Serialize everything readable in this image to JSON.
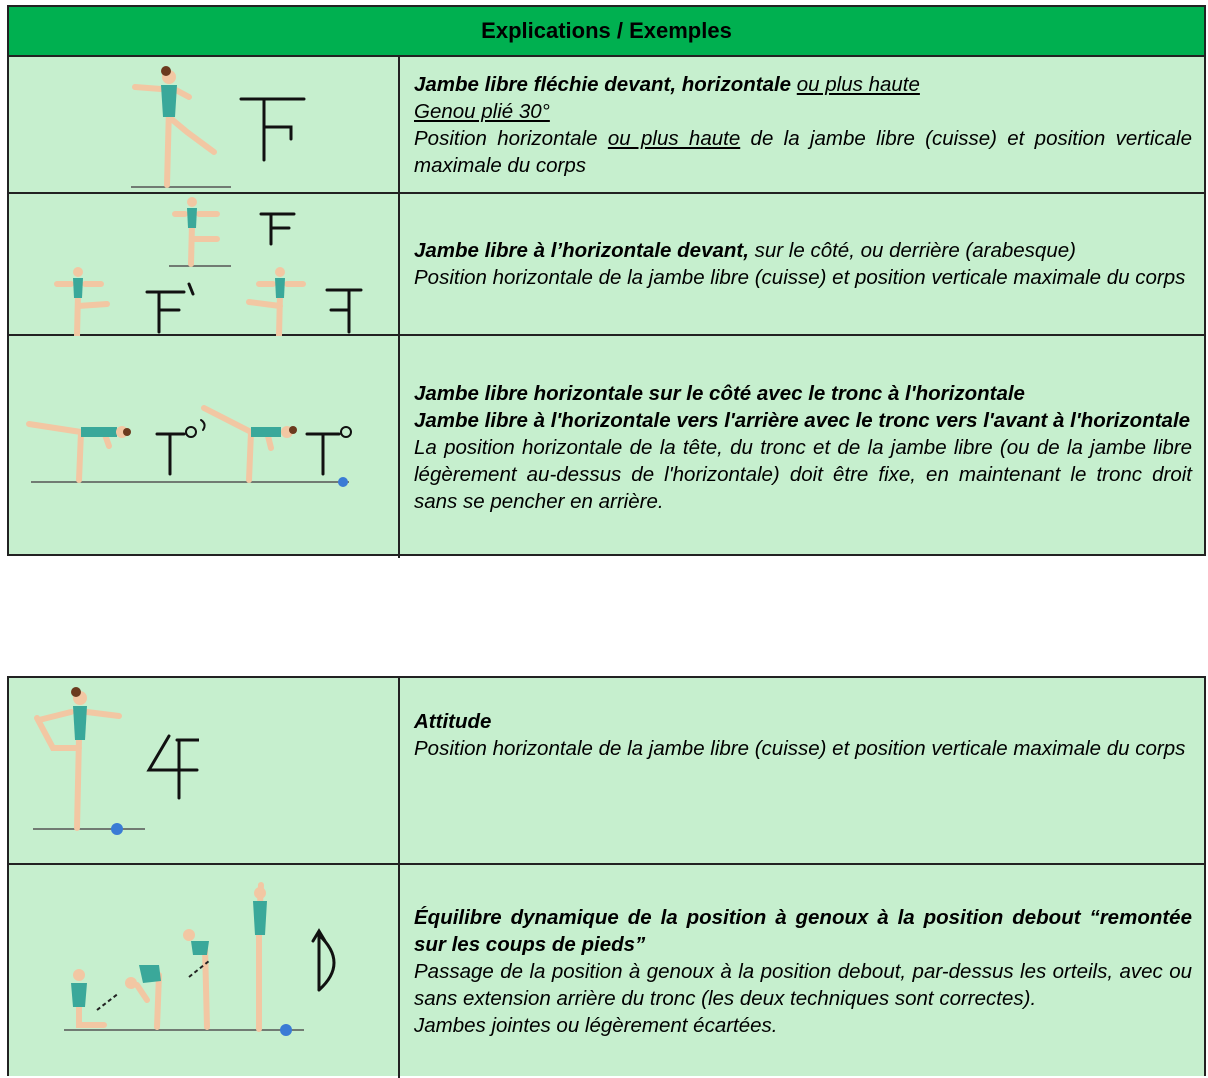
{
  "tables": [
    {
      "header": "Explications / Exemples",
      "rows": [
        {
          "paragraphs": [
            [
              {
                "text": "Jambe libre fléchie devant, horizontale ",
                "style": "bold"
              },
              {
                "text": "ou plus haute",
                "style": "underline"
              }
            ],
            [
              {
                "text": "Genou plié 30°",
                "style": "underline"
              }
            ],
            [
              {
                "text": "Position horizontale ",
                "style": "plain"
              },
              {
                "text": "ou plus haute",
                "style": "underline"
              },
              {
                "text": " de la jambe libre (cuisse) et position verticale maximale du corps",
                "style": "plain"
              }
            ]
          ]
        },
        {
          "paragraphs": [
            [
              {
                "text": "Jambe libre à l’horizontale devant,",
                "style": "bold"
              },
              {
                "text": " sur le côté, ou derrière (arabesque)",
                "style": "plain"
              }
            ],
            [
              {
                "text": "Position horizontale de la jambe libre (cuisse) et position verticale maximale du corps",
                "style": "plain"
              }
            ]
          ]
        },
        {
          "paragraphs": [
            [
              {
                "text": "Jambe libre horizontale sur le côté avec le tronc à l'horizontale",
                "style": "bold"
              }
            ],
            [
              {
                "text": "Jambe libre à l'horizontale vers l'arrière avec le tronc vers l'avant à l'horizontale",
                "style": "bold"
              }
            ],
            [
              {
                "text": "La position horizontale de la tête, du tronc et de la jambe libre (ou de la jambe libre légèrement au-dessus de l'horizontale) doit être fixe, en maintenant le tronc droit sans se pencher en arrière.",
                "style": "plain"
              }
            ]
          ]
        }
      ]
    },
    {
      "rows": [
        {
          "paragraphs": [
            [
              {
                "text": "Attitude",
                "style": "bold"
              }
            ],
            [
              {
                "text": "Position horizontale de la jambe libre (cuisse) et position verticale maximale du corps",
                "style": "plain"
              }
            ]
          ]
        },
        {
          "paragraphs": [
            [
              {
                "text": "Équilibre dynamique de la position à genoux à la position debout “remontée sur les coups de pieds”",
                "style": "bold"
              }
            ],
            [
              {
                "text": "Passage de la position à genoux à la position debout, par-dessus les orteils, avec ou sans extension arrière du tronc (les deux techniques sont correctes).",
                "style": "plain"
              }
            ],
            [
              {
                "text": "Jambes jointes ou légèrement écartées.",
                "style": "plain"
              }
            ]
          ]
        }
      ]
    }
  ]
}
